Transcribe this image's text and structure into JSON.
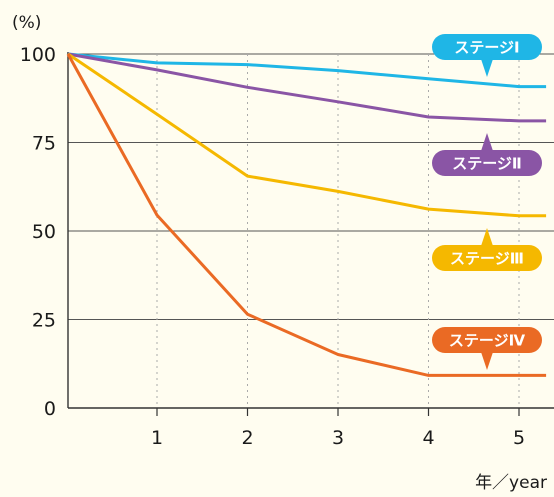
{
  "chart_data": {
    "type": "line",
    "ylabel": "(%)",
    "xlabel": "年／year",
    "x": [
      0,
      1,
      2,
      3,
      4,
      5
    ],
    "xticks": [
      "1",
      "2",
      "3",
      "4",
      "5"
    ],
    "yticks": [
      "0",
      "25",
      "50",
      "75",
      "100"
    ],
    "xlim": [
      0,
      5.3
    ],
    "ylim": [
      0,
      100
    ],
    "grid": "horizontal solid, vertical dotted",
    "series": [
      {
        "name": "ステージⅠ",
        "color": "#1fb6e6",
        "values": [
          100,
          97.5,
          97,
          95.3,
          93,
          90.8
        ]
      },
      {
        "name": "ステージⅡ",
        "color": "#8a55a5",
        "values": [
          100,
          95.5,
          90.6,
          86.5,
          82.2,
          81.1
        ]
      },
      {
        "name": "ステージⅢ",
        "color": "#f5b800",
        "values": [
          100,
          83,
          65.5,
          61.2,
          56.2,
          54.3
        ]
      },
      {
        "name": "ステージⅣ",
        "color": "#ea6a24",
        "values": [
          100,
          54.5,
          26.5,
          15.1,
          9.2,
          9.2
        ]
      }
    ],
    "callouts": [
      {
        "series": 0,
        "label": "ステージⅠ",
        "color": "#1fb6e6",
        "pointer": "down"
      },
      {
        "series": 1,
        "label": "ステージⅡ",
        "color": "#8a55a5",
        "pointer": "up"
      },
      {
        "series": 2,
        "label": "ステージⅢ",
        "color": "#f5b800",
        "pointer": "up"
      },
      {
        "series": 3,
        "label": "ステージⅣ",
        "color": "#ea6a24",
        "pointer": "down"
      }
    ]
  }
}
